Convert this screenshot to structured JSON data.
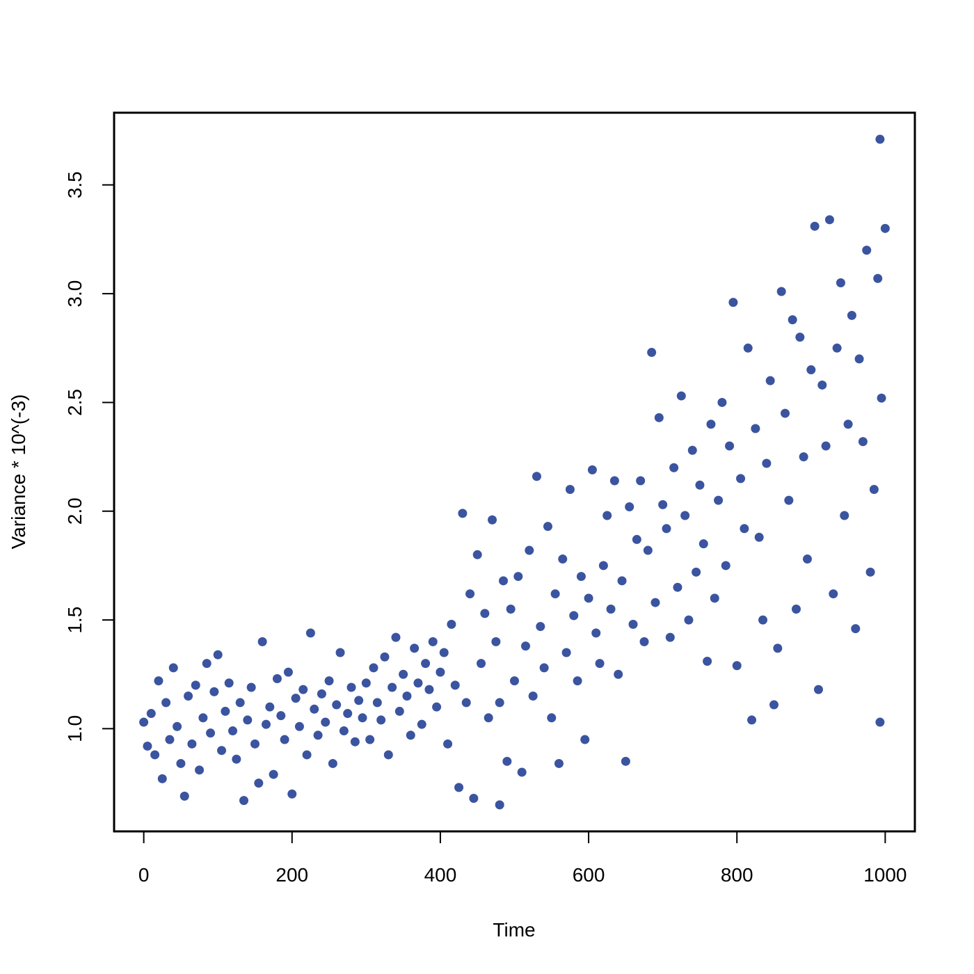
{
  "chart_data": {
    "type": "scatter",
    "x_label": "Time",
    "y_label": "Variance * 10^(-3)",
    "xlim": [
      -40,
      1040
    ],
    "ylim": [
      0.528,
      3.832
    ],
    "xticks": [
      0,
      200,
      400,
      600,
      800,
      1000
    ],
    "yticks": [
      {
        "value": 1,
        "label": "1.0"
      },
      1.5,
      {
        "value": 2,
        "label": "2.0"
      },
      2.5,
      {
        "value": 3,
        "label": "3.0"
      },
      3.5
    ],
    "series": [
      {
        "color": "#3b54a0",
        "x": [
          0,
          5,
          10,
          15,
          20,
          25,
          30,
          35,
          40,
          45,
          50,
          55,
          60,
          65,
          70,
          75,
          80,
          85,
          90,
          95,
          100,
          105,
          110,
          115,
          120,
          125,
          130,
          135,
          140,
          145,
          150,
          155,
          160,
          165,
          170,
          175,
          180,
          185,
          190,
          195,
          200,
          205,
          210,
          215,
          220,
          225,
          230,
          235,
          240,
          245,
          250,
          255,
          260,
          265,
          270,
          275,
          280,
          285,
          290,
          295,
          300,
          305,
          310,
          315,
          320,
          325,
          330,
          335,
          340,
          345,
          350,
          355,
          360,
          365,
          370,
          375,
          380,
          385,
          390,
          395,
          400,
          405,
          410,
          415,
          420,
          425,
          430,
          435,
          440,
          445,
          450,
          455,
          460,
          465,
          470,
          475,
          480,
          485,
          490,
          495,
          500,
          505,
          510,
          515,
          520,
          525,
          530,
          535,
          540,
          545,
          550,
          555,
          560,
          565,
          570,
          575,
          580,
          585,
          590,
          595,
          600,
          605,
          610,
          615,
          620,
          625,
          630,
          635,
          640,
          645,
          650,
          655,
          660,
          665,
          670,
          675,
          680,
          685,
          690,
          695,
          700,
          705,
          710,
          715,
          720,
          725,
          730,
          735,
          740,
          745,
          750,
          755,
          760,
          765,
          770,
          775,
          780,
          785,
          790,
          795,
          800,
          805,
          810,
          815,
          820,
          825,
          830,
          835,
          840,
          845,
          850,
          855,
          860,
          865,
          870,
          875,
          880,
          885,
          890,
          895,
          900,
          905,
          910,
          915,
          920,
          925,
          930,
          935,
          940,
          945,
          950,
          955,
          960,
          965,
          970,
          975,
          980,
          985,
          990,
          995,
          1000,
          993,
          480,
          993
        ],
        "values": [
          1.03,
          0.92,
          1.07,
          0.88,
          1.22,
          0.77,
          1.12,
          0.95,
          1.28,
          1.01,
          0.84,
          0.69,
          1.15,
          0.93,
          1.2,
          0.81,
          1.05,
          1.3,
          0.98,
          1.17,
          1.34,
          0.9,
          1.08,
          1.21,
          0.99,
          0.86,
          1.12,
          0.67,
          1.04,
          1.19,
          0.93,
          0.75,
          1.4,
          1.02,
          1.1,
          0.79,
          1.23,
          1.06,
          0.95,
          1.26,
          0.7,
          1.14,
          1.01,
          1.18,
          0.88,
          1.44,
          1.09,
          0.97,
          1.16,
          1.03,
          1.22,
          0.84,
          1.11,
          1.35,
          0.99,
          1.07,
          1.19,
          0.94,
          1.13,
          1.05,
          1.21,
          0.95,
          1.28,
          1.12,
          1.04,
          1.33,
          0.88,
          1.19,
          1.42,
          1.08,
          1.25,
          1.15,
          0.97,
          1.37,
          1.21,
          1.02,
          1.3,
          1.18,
          1.4,
          1.1,
          1.26,
          1.35,
          0.93,
          1.48,
          1.2,
          0.73,
          1.99,
          1.12,
          1.62,
          0.68,
          1.8,
          1.3,
          1.53,
          1.05,
          1.96,
          1.4,
          1.12,
          1.68,
          0.85,
          1.55,
          1.22,
          1.7,
          0.8,
          1.38,
          1.82,
          1.15,
          2.16,
          1.47,
          1.28,
          1.93,
          1.05,
          1.62,
          0.84,
          1.78,
          1.35,
          2.1,
          1.52,
          1.22,
          1.7,
          0.95,
          1.6,
          2.19,
          1.44,
          1.3,
          1.75,
          1.98,
          1.55,
          2.14,
          1.25,
          1.68,
          0.85,
          2.02,
          1.48,
          1.87,
          2.14,
          1.4,
          1.82,
          2.73,
          1.58,
          2.43,
          2.03,
          1.92,
          1.42,
          2.2,
          1.65,
          2.53,
          1.98,
          1.5,
          2.28,
          1.72,
          2.12,
          1.85,
          1.31,
          2.4,
          1.6,
          2.05,
          2.5,
          1.75,
          2.3,
          2.96,
          1.29,
          2.15,
          1.92,
          2.75,
          1.04,
          2.38,
          1.88,
          1.5,
          2.22,
          2.6,
          1.11,
          1.37,
          3.01,
          2.45,
          2.05,
          2.88,
          1.55,
          2.8,
          2.25,
          1.78,
          2.65,
          3.31,
          1.18,
          2.58,
          2.3,
          3.34,
          1.62,
          2.75,
          3.05,
          1.98,
          2.4,
          2.9,
          1.46,
          2.7,
          2.32,
          3.2,
          1.72,
          2.1,
          3.07,
          2.52,
          3.3,
          3.71,
          0.65,
          1.03
        ]
      }
    ]
  }
}
